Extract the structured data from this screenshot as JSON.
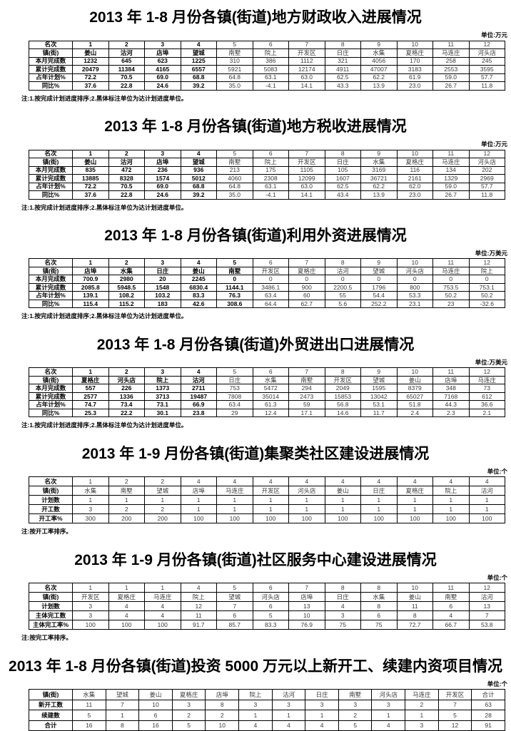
{
  "tables": [
    {
      "title": "2013 年 1-8 月份各镇(街道)地方财政收入进展情况",
      "unit": "单位:万元",
      "note": "注:1.按完成计划进度排序;2.黑体标注单位为达计划进度单位。",
      "row_labels": [
        "名次",
        "镇(街)",
        "本月完成数",
        "累计完成数",
        "占年计划%",
        "同比%"
      ],
      "columns": [
        {
          "cells": [
            "1",
            "姜山",
            "1232",
            "20479",
            "72.2",
            "37.6"
          ],
          "bold": true
        },
        {
          "cells": [
            "2",
            "沽河",
            "645",
            "11384",
            "70.5",
            "22.8"
          ],
          "bold": true
        },
        {
          "cells": [
            "3",
            "店埠",
            "623",
            "4165",
            "69.0",
            "24.6"
          ],
          "bold": true
        },
        {
          "cells": [
            "4",
            "望城",
            "1225",
            "6557",
            "68.8",
            "39.2"
          ],
          "bold": true
        },
        {
          "cells": [
            "5",
            "南墅",
            "310",
            "5921",
            "64.8",
            "35.0"
          ],
          "bold": false
        },
        {
          "cells": [
            "6",
            "院上",
            "386",
            "5083",
            "63.1",
            "-4.1"
          ],
          "bold": false
        },
        {
          "cells": [
            "7",
            "开发区",
            "1112",
            "12174",
            "63.0",
            "14.1"
          ],
          "bold": false
        },
        {
          "cells": [
            "8",
            "日庄",
            "321",
            "4911",
            "62.5",
            "43.3"
          ],
          "bold": false
        },
        {
          "cells": [
            "9",
            "水集",
            "4056",
            "47007",
            "62.2",
            "13.9"
          ],
          "bold": false
        },
        {
          "cells": [
            "10",
            "夏格庄",
            "170",
            "3183",
            "61.9",
            "23.0"
          ],
          "bold": false
        },
        {
          "cells": [
            "11",
            "马连庄",
            "258",
            "2553",
            "59.0",
            "26.7"
          ],
          "bold": false
        },
        {
          "cells": [
            "12",
            "河头店",
            "245",
            "3595",
            "57.7",
            "11.8"
          ],
          "bold": false
        }
      ]
    },
    {
      "title": "2013 年 1-8 月份各镇(街道)地方税收进展情况",
      "unit": "单位:万元",
      "note": "注:1.按完成计划进度排序;2.黑体标注单位为达计划进度单位。",
      "row_labels": [
        "名次",
        "镇(街)",
        "本月完成数",
        "累计完成数",
        "占年计划%",
        "同比%"
      ],
      "columns": [
        {
          "cells": [
            "1",
            "姜山",
            "835",
            "13885",
            "72.2",
            "37.6"
          ],
          "bold": true
        },
        {
          "cells": [
            "2",
            "沽河",
            "472",
            "8328",
            "70.5",
            "22.8"
          ],
          "bold": true
        },
        {
          "cells": [
            "3",
            "店埠",
            "236",
            "1574",
            "69.0",
            "24.6"
          ],
          "bold": true
        },
        {
          "cells": [
            "4",
            "望城",
            "936",
            "5012",
            "68.8",
            "39.2"
          ],
          "bold": true
        },
        {
          "cells": [
            "5",
            "南墅",
            "213",
            "4060",
            "64.8",
            "35.0"
          ],
          "bold": false
        },
        {
          "cells": [
            "6",
            "院上",
            "175",
            "2308",
            "63.1",
            "-4.1"
          ],
          "bold": false
        },
        {
          "cells": [
            "7",
            "开发区",
            "1105",
            "12099",
            "63.0",
            "14.1"
          ],
          "bold": false
        },
        {
          "cells": [
            "8",
            "日庄",
            "105",
            "1607",
            "62.5",
            "43.4"
          ],
          "bold": false
        },
        {
          "cells": [
            "9",
            "水集",
            "3169",
            "36721",
            "62.2",
            "13.9"
          ],
          "bold": false
        },
        {
          "cells": [
            "10",
            "夏格庄",
            "116",
            "2161",
            "62.0",
            "23.0"
          ],
          "bold": false
        },
        {
          "cells": [
            "11",
            "马连庄",
            "134",
            "1329",
            "59.0",
            "26.7"
          ],
          "bold": false
        },
        {
          "cells": [
            "12",
            "河头店",
            "202",
            "2969",
            "57.7",
            "11.8"
          ],
          "bold": false
        }
      ]
    },
    {
      "title": "2013 年 1-8 月份各镇(街道)利用外资进展情况",
      "unit": "单位:万美元",
      "note": "注:1.按完成计划进度排序;2.黑体标注单位为达计划进度单位。",
      "row_labels": [
        "名次",
        "镇(街)",
        "本月完成数",
        "累计完成数",
        "占年计划%",
        "同比%"
      ],
      "columns": [
        {
          "cells": [
            "1",
            "店埠",
            "700.9",
            "2085.8",
            "139.1",
            "115.4"
          ],
          "bold": true
        },
        {
          "cells": [
            "2",
            "水集",
            "2980",
            "5948.5",
            "108.2",
            "115.2"
          ],
          "bold": true
        },
        {
          "cells": [
            "3",
            "日庄",
            "20",
            "1548",
            "103.2",
            "183"
          ],
          "bold": true
        },
        {
          "cells": [
            "4",
            "姜山",
            "2245",
            "6830.4",
            "83.3",
            "42.6"
          ],
          "bold": true
        },
        {
          "cells": [
            "5",
            "南墅",
            "0",
            "1144.1",
            "76.3",
            "308.6"
          ],
          "bold": true
        },
        {
          "cells": [
            "6",
            "开发区",
            "0",
            "3486.1",
            "63.4",
            "64.4"
          ],
          "bold": false
        },
        {
          "cells": [
            "7",
            "夏格庄",
            "0",
            "900",
            "60",
            "62.7"
          ],
          "bold": false
        },
        {
          "cells": [
            "8",
            "沽河",
            "0",
            "2200.5",
            "55",
            "5.6"
          ],
          "bold": false
        },
        {
          "cells": [
            "9",
            "望城",
            "0",
            "1796",
            "54.4",
            "252.2"
          ],
          "bold": false
        },
        {
          "cells": [
            "10",
            "河头店",
            "0",
            "800",
            "53.3",
            "23.1"
          ],
          "bold": false
        },
        {
          "cells": [
            "11",
            "马连庄",
            "0",
            "753.5",
            "50.2",
            "23"
          ],
          "bold": false
        },
        {
          "cells": [
            "12",
            "院上",
            "0",
            "753.1",
            "50.2",
            "-32.6"
          ],
          "bold": false
        }
      ]
    },
    {
      "title": "2013 年 1-8 月份各镇(街道)外贸进出口进展情况",
      "unit": "单位:万美元",
      "note": "注:1.按完成计划进度排序;2.黑体标注单位为达计划进度单位。",
      "row_labels": [
        "名次",
        "镇(街)",
        "本月完成数",
        "累计完成数",
        "占年计划%",
        "同比%"
      ],
      "columns": [
        {
          "cells": [
            "1",
            "夏格庄",
            "557",
            "2577",
            "74.7",
            "25.3"
          ],
          "bold": true
        },
        {
          "cells": [
            "2",
            "河头店",
            "226",
            "1336",
            "73.4",
            "22.2"
          ],
          "bold": true
        },
        {
          "cells": [
            "3",
            "院上",
            "1373",
            "3713",
            "73.1",
            "30.1"
          ],
          "bold": true
        },
        {
          "cells": [
            "4",
            "沽河",
            "2711",
            "19487",
            "66.9",
            "23.8"
          ],
          "bold": true
        },
        {
          "cells": [
            "5",
            "日庄",
            "753",
            "7808",
            "63.4",
            "29"
          ],
          "bold": false
        },
        {
          "cells": [
            "6",
            "水集",
            "5472",
            "35014",
            "61.3",
            "12.4"
          ],
          "bold": false
        },
        {
          "cells": [
            "7",
            "南墅",
            "294",
            "2473",
            "59",
            "17.1"
          ],
          "bold": false
        },
        {
          "cells": [
            "8",
            "开发区",
            "2049",
            "15853",
            "56.8",
            "14.6"
          ],
          "bold": false
        },
        {
          "cells": [
            "9",
            "望城",
            "1595",
            "13042",
            "53.1",
            "11.7"
          ],
          "bold": false
        },
        {
          "cells": [
            "10",
            "姜山",
            "8379",
            "65027",
            "51.8",
            "2.4"
          ],
          "bold": false
        },
        {
          "cells": [
            "11",
            "店埠",
            "348",
            "7168",
            "44.3",
            "2.3"
          ],
          "bold": false
        },
        {
          "cells": [
            "12",
            "马连庄",
            "73",
            "612",
            "36.6",
            "2.1"
          ],
          "bold": false
        }
      ]
    },
    {
      "title": "2013 年 1-9 月份各镇(街道)集聚类社区建设进展情况",
      "unit": "单位:个",
      "note": "注:按开工率排序。",
      "row_labels": [
        "名次",
        "镇(街)",
        "计划数",
        "开工数",
        "开工率%"
      ],
      "columns": [
        {
          "cells": [
            "1",
            "水集",
            "1",
            "3",
            "300"
          ],
          "bold": false
        },
        {
          "cells": [
            "2",
            "南墅",
            "1",
            "2",
            "200"
          ],
          "bold": false
        },
        {
          "cells": [
            "2",
            "望城",
            "1",
            "2",
            "200"
          ],
          "bold": false
        },
        {
          "cells": [
            "4",
            "店埠",
            "1",
            "1",
            "100"
          ],
          "bold": false
        },
        {
          "cells": [
            "4",
            "马连庄",
            "1",
            "1",
            "100"
          ],
          "bold": false
        },
        {
          "cells": [
            "4",
            "开发区",
            "1",
            "1",
            "100"
          ],
          "bold": false
        },
        {
          "cells": [
            "4",
            "河头店",
            "1",
            "1",
            "100"
          ],
          "bold": false
        },
        {
          "cells": [
            "4",
            "姜山",
            "1",
            "1",
            "100"
          ],
          "bold": false
        },
        {
          "cells": [
            "4",
            "日庄",
            "1",
            "1",
            "100"
          ],
          "bold": false
        },
        {
          "cells": [
            "4",
            "夏格庄",
            "1",
            "1",
            "100"
          ],
          "bold": false
        },
        {
          "cells": [
            "4",
            "院上",
            "1",
            "1",
            "100"
          ],
          "bold": false
        },
        {
          "cells": [
            "4",
            "沽河",
            "1",
            "1",
            "100"
          ],
          "bold": false
        }
      ]
    },
    {
      "title": "2013 年 1-9 月份各镇(街道)社区服务中心建设进展情况",
      "unit": "单位:个",
      "note": "注:按完工率排序。",
      "row_labels": [
        "名次",
        "镇(街)",
        "计划数",
        "主体完工数",
        "主体完工率%"
      ],
      "columns": [
        {
          "cells": [
            "1",
            "开发区",
            "3",
            "3",
            "100"
          ],
          "bold": false
        },
        {
          "cells": [
            "1",
            "夏格庄",
            "4",
            "4",
            "100"
          ],
          "bold": false
        },
        {
          "cells": [
            "1",
            "马连庄",
            "4",
            "4",
            "100"
          ],
          "bold": false
        },
        {
          "cells": [
            "4",
            "院上",
            "12",
            "11",
            "91.7"
          ],
          "bold": false
        },
        {
          "cells": [
            "5",
            "望城",
            "7",
            "6",
            "85.7"
          ],
          "bold": false
        },
        {
          "cells": [
            "6",
            "河头店",
            "6",
            "5",
            "83.3"
          ],
          "bold": false
        },
        {
          "cells": [
            "7",
            "店埠",
            "13",
            "10",
            "76.9"
          ],
          "bold": false
        },
        {
          "cells": [
            "8",
            "日庄",
            "4",
            "3",
            "75"
          ],
          "bold": false
        },
        {
          "cells": [
            "8",
            "水集",
            "8",
            "6",
            "75"
          ],
          "bold": false
        },
        {
          "cells": [
            "10",
            "姜山",
            "11",
            "8",
            "72.7"
          ],
          "bold": false
        },
        {
          "cells": [
            "11",
            "南墅",
            "6",
            "4",
            "66.7"
          ],
          "bold": false
        },
        {
          "cells": [
            "12",
            "沽河",
            "13",
            "7",
            "53.8"
          ],
          "bold": false
        }
      ]
    },
    {
      "title": "2013 年 1-8 月份各镇(街道)投资 5000 万元以上新开工、续建内资项目情况",
      "unit": "单位:个",
      "note": "",
      "row_labels": [
        "镇(街)",
        "新开工数",
        "续建数",
        "合计"
      ],
      "columns": [
        {
          "cells": [
            "水集",
            "11",
            "5",
            "16"
          ],
          "bold": false
        },
        {
          "cells": [
            "望城",
            "7",
            "1",
            "8"
          ],
          "bold": false
        },
        {
          "cells": [
            "姜山",
            "10",
            "6",
            "16"
          ],
          "bold": false
        },
        {
          "cells": [
            "夏格庄",
            "3",
            "2",
            "5"
          ],
          "bold": false
        },
        {
          "cells": [
            "店埠",
            "8",
            "2",
            "10"
          ],
          "bold": false
        },
        {
          "cells": [
            "院上",
            "3",
            "1",
            "4"
          ],
          "bold": false
        },
        {
          "cells": [
            "沽河",
            "3",
            "1",
            "4"
          ],
          "bold": false
        },
        {
          "cells": [
            "日庄",
            "3",
            "1",
            "4"
          ],
          "bold": false
        },
        {
          "cells": [
            "南墅",
            "3",
            "2",
            "5"
          ],
          "bold": false
        },
        {
          "cells": [
            "河头店",
            "3",
            "1",
            "4"
          ],
          "bold": false
        },
        {
          "cells": [
            "马连庄",
            "2",
            "1",
            "3"
          ],
          "bold": false
        },
        {
          "cells": [
            "开发区",
            "7",
            "5",
            "12"
          ],
          "bold": false
        },
        {
          "cells": [
            "合计",
            "63",
            "28",
            "91"
          ],
          "bold": false
        }
      ]
    }
  ]
}
